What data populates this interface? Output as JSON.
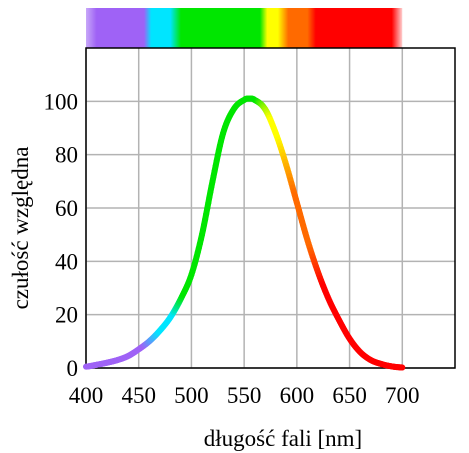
{
  "chart_data": {
    "type": "line",
    "title": "",
    "xlabel": "długość fali [nm]",
    "ylabel": "czułość względna",
    "xlim": [
      400,
      750
    ],
    "ylim": [
      0,
      120
    ],
    "x_ticks": [
      400,
      450,
      500,
      550,
      600,
      650,
      700
    ],
    "y_ticks": [
      0,
      20,
      40,
      60,
      80,
      100
    ],
    "grid": true,
    "legend": "none",
    "spectrum_band": {
      "range": [
        400,
        700
      ],
      "stops": [
        {
          "nm": 400,
          "color": "#c8a8f8"
        },
        {
          "nm": 410,
          "color": "#9f62f6"
        },
        {
          "nm": 455,
          "color": "#9f62f6"
        },
        {
          "nm": 462,
          "color": "#00e5ff"
        },
        {
          "nm": 480,
          "color": "#00e5ff"
        },
        {
          "nm": 490,
          "color": "#00e600"
        },
        {
          "nm": 565,
          "color": "#00e600"
        },
        {
          "nm": 572,
          "color": "#ffff00"
        },
        {
          "nm": 582,
          "color": "#ffff00"
        },
        {
          "nm": 592,
          "color": "#ff6a00"
        },
        {
          "nm": 610,
          "color": "#ff6a00"
        },
        {
          "nm": 618,
          "color": "#ff0000"
        },
        {
          "nm": 690,
          "color": "#ff0000"
        },
        {
          "nm": 700,
          "color": "#ffd0d0"
        }
      ]
    },
    "series": [
      {
        "x": [
          400,
          410,
          420,
          430,
          440,
          450,
          460,
          470,
          480,
          490,
          500,
          510,
          520,
          530,
          540,
          550,
          555,
          560,
          570,
          580,
          590,
          600,
          610,
          620,
          630,
          640,
          650,
          660,
          670,
          680,
          690,
          700
        ],
        "values": [
          0.5,
          1.2,
          2,
          3,
          4.5,
          7,
          10,
          14,
          19,
          26,
          35,
          50,
          70,
          88,
          97,
          100.5,
          101,
          100.5,
          97,
          88,
          76,
          62,
          48,
          36,
          26,
          18,
          11,
          6,
          3,
          1.5,
          0.6,
          0.2
        ]
      }
    ],
    "line_colors": [
      {
        "nm": 400,
        "color": "#9f62f6"
      },
      {
        "nm": 455,
        "color": "#9f62f6"
      },
      {
        "nm": 470,
        "color": "#00e5ff"
      },
      {
        "nm": 482,
        "color": "#00e5ff"
      },
      {
        "nm": 492,
        "color": "#00e600"
      },
      {
        "nm": 562,
        "color": "#00e600"
      },
      {
        "nm": 575,
        "color": "#ffff00"
      },
      {
        "nm": 582,
        "color": "#ffff00"
      },
      {
        "nm": 598,
        "color": "#ff6a00"
      },
      {
        "nm": 612,
        "color": "#ff6a00"
      },
      {
        "nm": 625,
        "color": "#ff0000"
      },
      {
        "nm": 700,
        "color": "#ff0000"
      }
    ]
  }
}
